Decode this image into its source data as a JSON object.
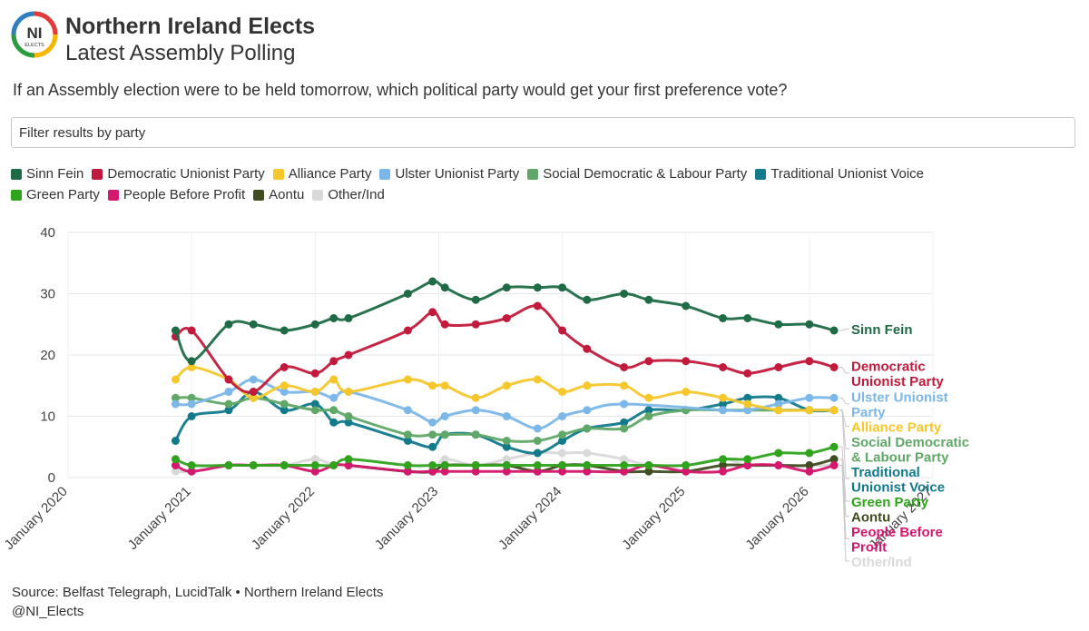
{
  "header": {
    "logo_text": "NI",
    "logo_subtext": "ELECTS",
    "title": "Northern Ireland Elects",
    "subtitle": "Latest Assembly Polling"
  },
  "question": "If an Assembly election were to be held tomorrow, which political party would get your first preference vote?",
  "filter": {
    "placeholder": "Filter results by party"
  },
  "colors": {
    "logo_ring": [
      "#e23a3a",
      "#f5b700",
      "#2a9d3c",
      "#2d7fc1"
    ]
  },
  "footer": {
    "source": "Source: Belfast Telegraph, LucidTalk • Northern Ireland Elects",
    "handle": "@NI_Elects"
  },
  "chart_data": {
    "type": "line",
    "title": "Latest Assembly Polling",
    "xlabel": "",
    "ylabel": "",
    "ylim": [
      0,
      40
    ],
    "yticks": [
      0,
      10,
      20,
      30,
      40
    ],
    "xlim": [
      2020.0,
      2027.0
    ],
    "xticks": [
      {
        "value": 2020.0,
        "label": "January 2020"
      },
      {
        "value": 2021.0,
        "label": "January 2021"
      },
      {
        "value": 2022.0,
        "label": "January 2022"
      },
      {
        "value": 2023.0,
        "label": "January 2023"
      },
      {
        "value": 2024.0,
        "label": "January 2024"
      },
      {
        "value": 2025.0,
        "label": "January 2025"
      },
      {
        "value": 2026.0,
        "label": "January 2026"
      },
      {
        "value": 2027.0,
        "label": "January 2027"
      }
    ],
    "x": [
      2020.87,
      2021.0,
      2021.3,
      2021.5,
      2021.75,
      2022.0,
      2022.15,
      2022.27,
      2022.37,
      2022.45,
      2022.75,
      2022.95,
      2023.05,
      2023.3,
      2023.55,
      2023.8,
      2024.0,
      2024.2,
      2024.5,
      2024.7,
      2025.0,
      2025.3,
      2025.5,
      2025.75,
      2026.0,
      2026.2,
      2026.5,
      2026.72
    ],
    "series": [
      {
        "name": "Sinn Fein",
        "label": "Sinn Fein",
        "color": "#1e6b46",
        "values": [
          24,
          19,
          25,
          25,
          24,
          25,
          26,
          26,
          null,
          null,
          30,
          32,
          31,
          29,
          31,
          31,
          31,
          29,
          30,
          29,
          28,
          26,
          26,
          25,
          25,
          24,
          null,
          null
        ]
      },
      {
        "name": "Democratic Unionist Party",
        "label": "Democratic Unionist Party",
        "color": "#c21a3c",
        "values": [
          23,
          24,
          16,
          14,
          18,
          17,
          19,
          20,
          null,
          null,
          24,
          27,
          25,
          25,
          26,
          28,
          24,
          21,
          18,
          19,
          19,
          18,
          17,
          18,
          19,
          18,
          null,
          null
        ]
      },
      {
        "name": "Alliance Party",
        "label": "Alliance Party",
        "color": "#f5c72b",
        "values": [
          16,
          18,
          16,
          13,
          15,
          14,
          16,
          14,
          null,
          null,
          16,
          15,
          15,
          13,
          15,
          16,
          14,
          15,
          15,
          13,
          14,
          13,
          12,
          11,
          11,
          11,
          null,
          null
        ]
      },
      {
        "name": "Ulster Unionist Party",
        "label": "Ulster Unionist Party",
        "color": "#7bb7e8",
        "values": [
          12,
          12,
          14,
          16,
          14,
          14,
          13,
          14,
          null,
          null,
          11,
          9,
          10,
          11,
          10,
          8,
          10,
          11,
          12,
          null,
          null,
          11,
          11,
          12,
          13,
          13,
          null,
          null
        ]
      },
      {
        "name": "Social Democratic & Labour Party",
        "label": "Social Democratic & Labour Party",
        "color": "#60a867",
        "values": [
          13,
          13,
          12,
          13,
          12,
          11,
          11,
          10,
          null,
          null,
          7,
          7,
          7,
          7,
          6,
          6,
          7,
          8,
          8,
          10,
          11,
          11,
          11,
          11,
          11,
          11,
          null,
          null
        ]
      },
      {
        "name": "Traditional Unionist Voice",
        "label": "Traditional Unionist Voice",
        "color": "#117a8b",
        "values": [
          6,
          10,
          11,
          14,
          11,
          12,
          9,
          9,
          null,
          null,
          6,
          5,
          7,
          7,
          5,
          4,
          6,
          8,
          9,
          11,
          11,
          12,
          13,
          13,
          11,
          11,
          null,
          null
        ]
      },
      {
        "name": "Green Party",
        "label": "Green Party",
        "color": "#2fa31c",
        "values": [
          3,
          2,
          2,
          2,
          2,
          2,
          2,
          3,
          null,
          null,
          2,
          2,
          2,
          2,
          2,
          2,
          2,
          2,
          2,
          2,
          2,
          3,
          3,
          4,
          4,
          5,
          null,
          null
        ]
      },
      {
        "name": "People Before Profit",
        "label": "People Before Profit",
        "color": "#d6176e",
        "values": [
          2,
          1,
          2,
          2,
          2,
          1,
          2,
          2,
          null,
          null,
          1,
          1,
          1,
          1,
          1,
          1,
          1,
          1,
          1,
          2,
          1,
          1,
          2,
          2,
          1,
          2,
          null,
          null
        ]
      },
      {
        "name": "Aontu",
        "label": "Aontu",
        "color": "#3f4d21",
        "values": [
          null,
          null,
          null,
          null,
          null,
          null,
          null,
          2,
          null,
          null,
          1,
          1,
          2,
          2,
          2,
          1,
          2,
          2,
          1,
          1,
          1,
          2,
          2,
          2,
          2,
          3,
          null,
          null
        ]
      },
      {
        "name": "Other/Ind",
        "label": "Other/Ind",
        "color": "#d9d9d9",
        "values": [
          1,
          1,
          2,
          2,
          2,
          3,
          2,
          2,
          null,
          null,
          1,
          1,
          3,
          2,
          3,
          4,
          4,
          4,
          3,
          2,
          2,
          3,
          2,
          2,
          2,
          2,
          null,
          null
        ]
      }
    ],
    "legend_position": "top",
    "end_labels": [
      {
        "series": "Sinn Fein",
        "lines": [
          "Sinn Fein"
        ]
      },
      {
        "series": "Democratic Unionist Party",
        "lines": [
          "Democratic",
          "Unionist Party"
        ]
      },
      {
        "series": "Ulster Unionist Party",
        "lines": [
          "Ulster Unionist",
          "Party"
        ]
      },
      {
        "series": "Alliance Party",
        "lines": [
          "Alliance Party"
        ]
      },
      {
        "series": "Social Democratic & Labour Party",
        "lines": [
          "Social Democratic",
          "& Labour Party"
        ]
      },
      {
        "series": "Traditional Unionist Voice",
        "lines": [
          "Traditional",
          "Unionist Voice"
        ]
      },
      {
        "series": "Green Party",
        "lines": [
          "Green Party"
        ]
      },
      {
        "series": "Aontu",
        "lines": [
          "Aontu"
        ]
      },
      {
        "series": "People Before Profit",
        "lines": [
          "People Before",
          "Profit"
        ]
      },
      {
        "series": "Other/Ind",
        "lines": [
          "Other/Ind"
        ]
      }
    ]
  }
}
